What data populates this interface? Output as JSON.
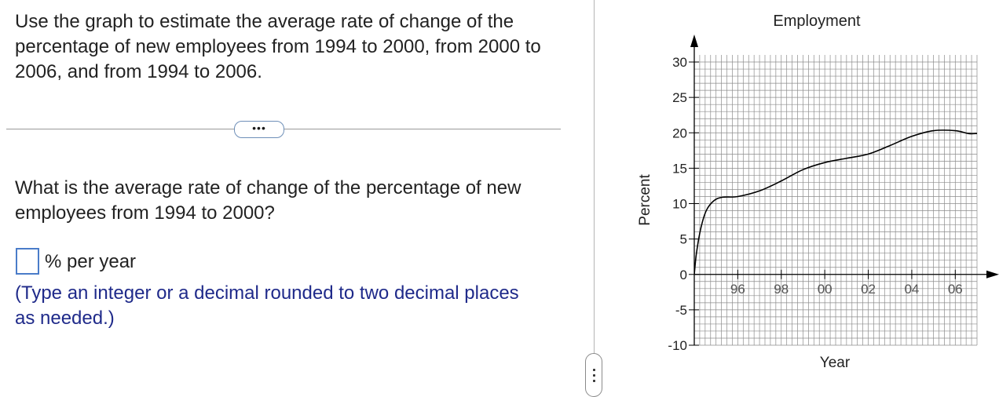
{
  "question": {
    "intro": "Use the graph to estimate the average rate of change of the percentage of new employees from 1994 to 2000, from 2000 to 2006, and from 1994 to 2006.",
    "more_label": "•••",
    "sub_question": "What is the average rate of change of the percentage of new employees from 1994 to 2000?",
    "answer": {
      "value": "",
      "placeholder": ""
    },
    "unit": "% per year",
    "hint": "(Type an integer or a decimal rounded to two decimal places as needed.)"
  },
  "chart_data": {
    "type": "line",
    "title": "Employment",
    "xlabel": "Year",
    "ylabel": "Percent",
    "x_tick_labels": [
      "96",
      "98",
      "00",
      "02",
      "04",
      "06"
    ],
    "x_tick_years": [
      1996,
      1998,
      2000,
      2002,
      2004,
      2006
    ],
    "y_ticks": [
      -10,
      -5,
      0,
      5,
      10,
      15,
      20,
      25,
      30
    ],
    "xlim": [
      1994,
      2007
    ],
    "ylim": [
      -10,
      31
    ],
    "grid": true,
    "series": [
      {
        "points": [
          [
            1994,
            0
          ],
          [
            1994.1,
            3
          ],
          [
            1994.3,
            6.5
          ],
          [
            1994.55,
            9
          ],
          [
            1994.9,
            10.4
          ],
          [
            1995.3,
            10.9
          ],
          [
            1996,
            11
          ],
          [
            1997,
            11.8
          ],
          [
            1998,
            13.2
          ],
          [
            1999,
            14.8
          ],
          [
            2000,
            15.8
          ],
          [
            2001,
            16.4
          ],
          [
            2002,
            17
          ],
          [
            2003,
            18.2
          ],
          [
            2004,
            19.5
          ],
          [
            2005,
            20.3
          ],
          [
            2006,
            20.3
          ],
          [
            2006.6,
            19.9
          ],
          [
            2007,
            19.9
          ]
        ]
      }
    ]
  }
}
